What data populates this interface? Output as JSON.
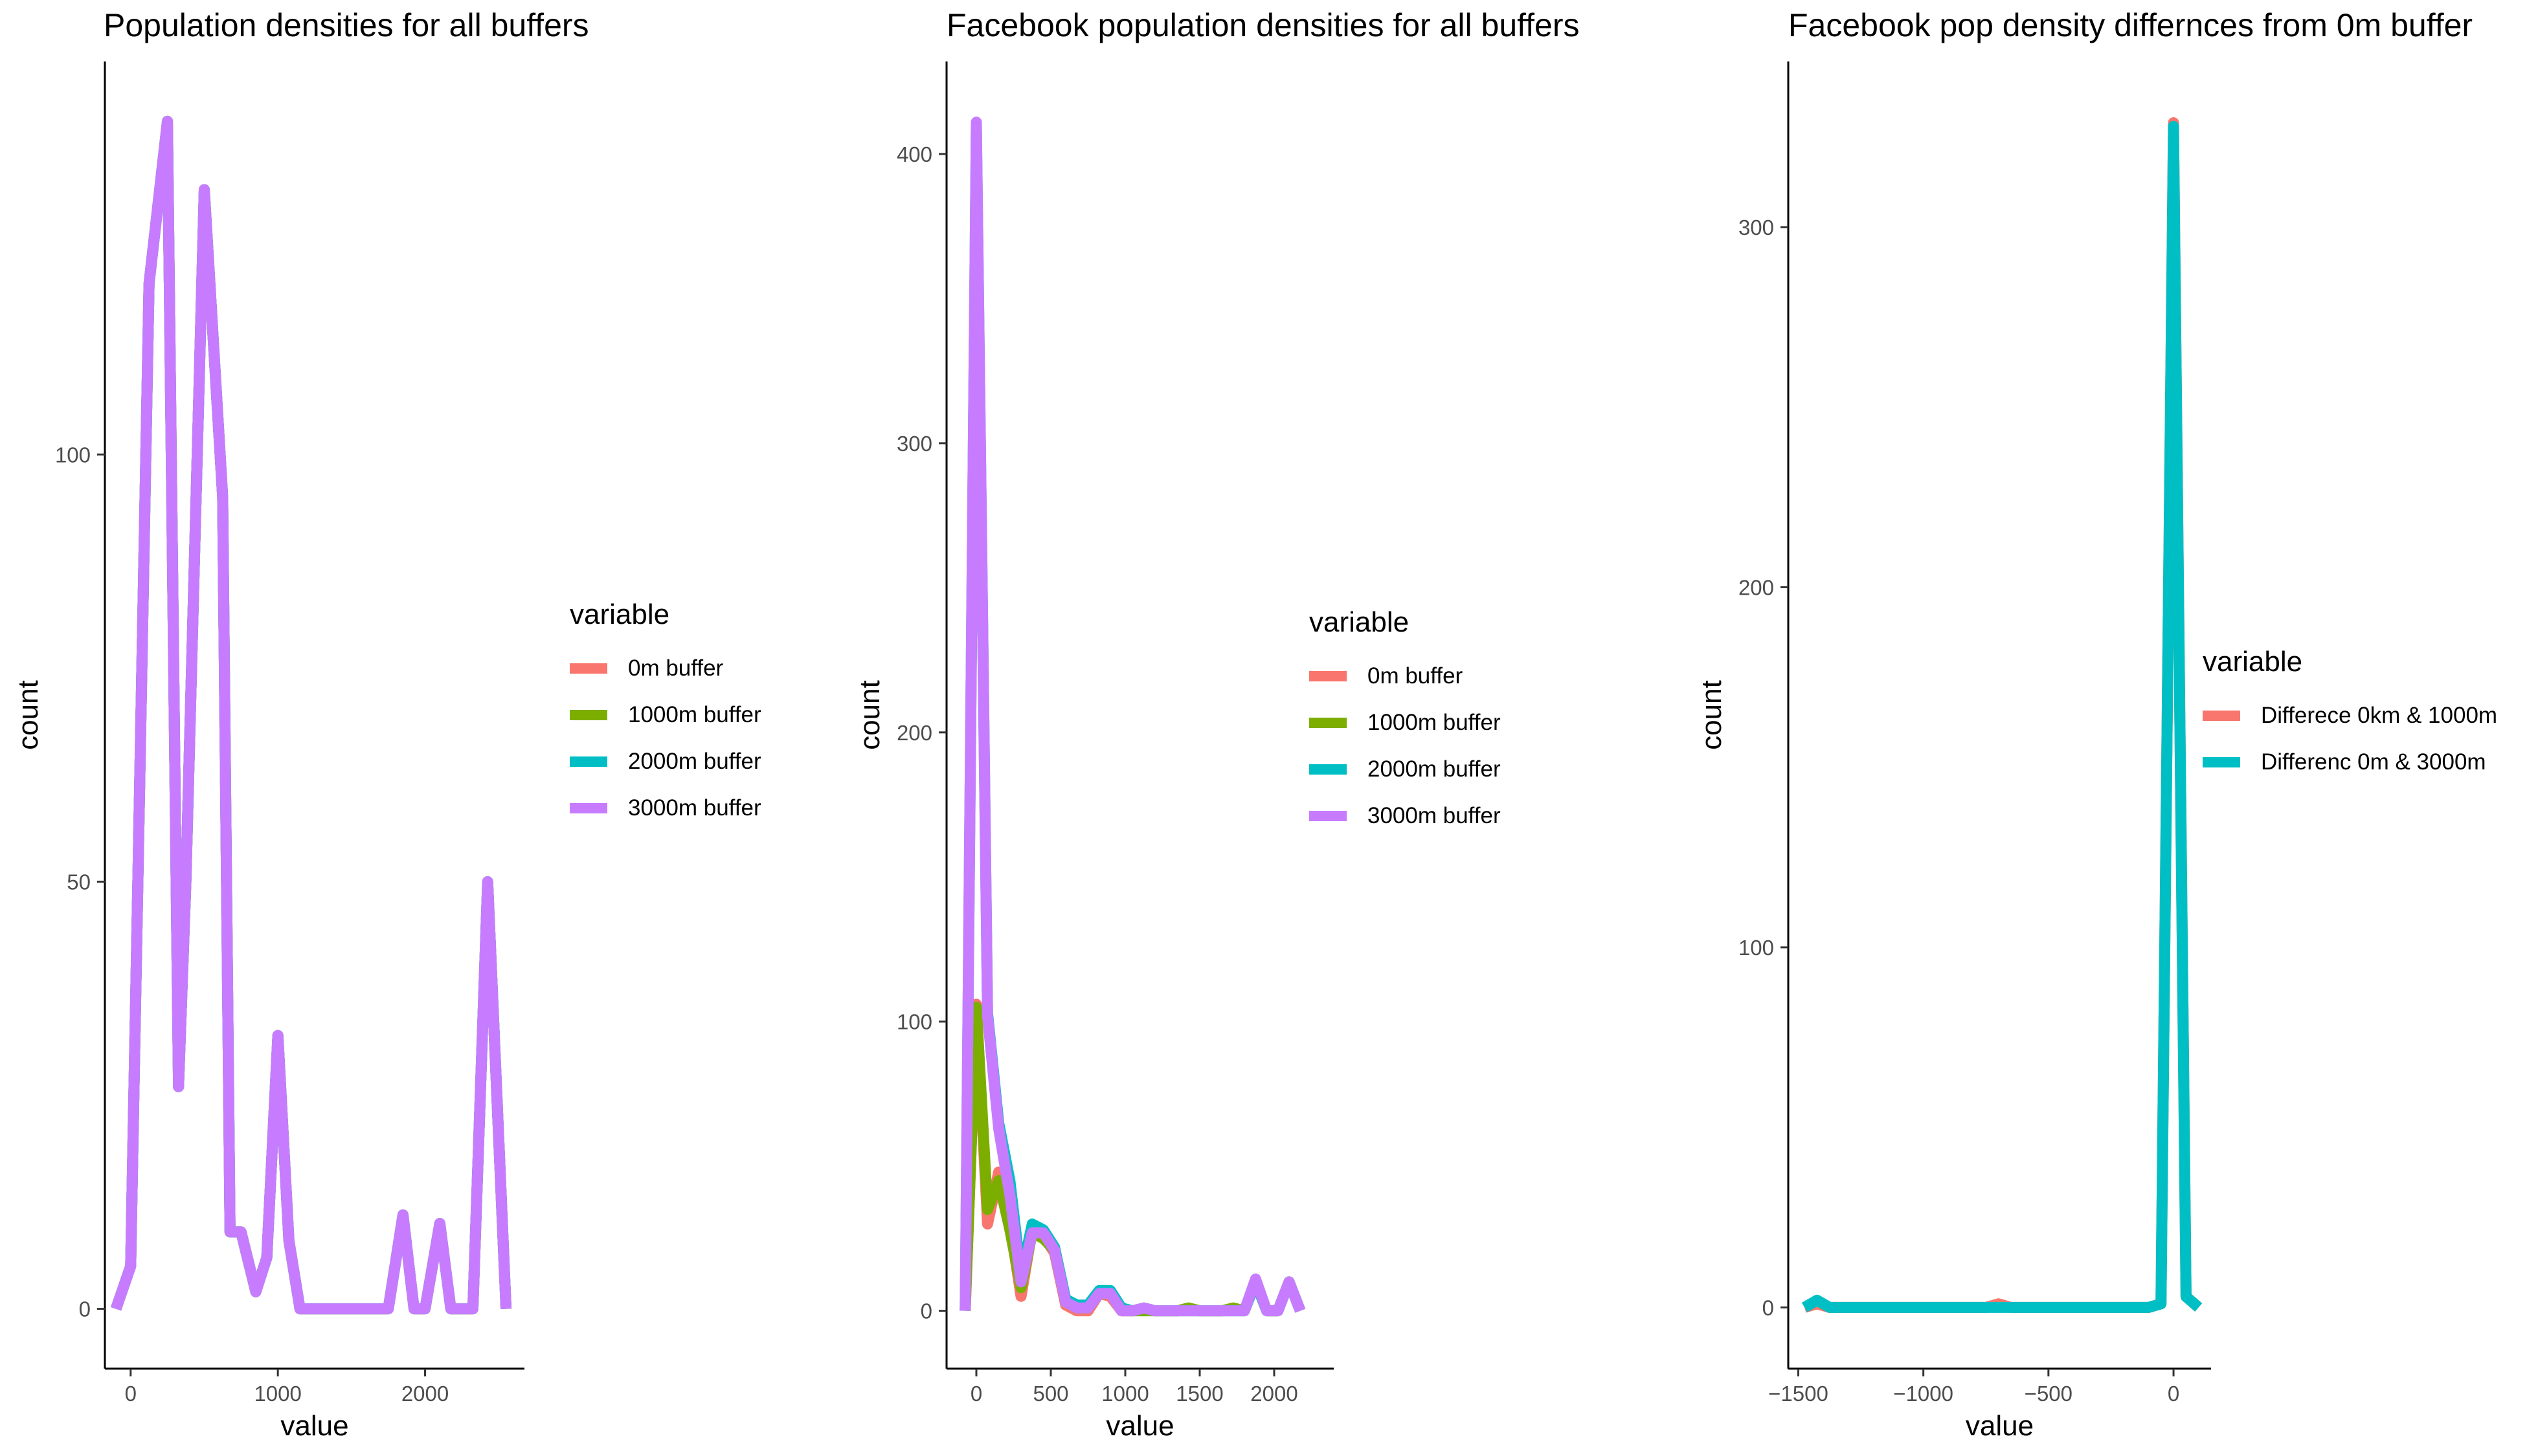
{
  "colors": {
    "0m buffer": "#F8766D",
    "1000m buffer": "#7CAE00",
    "2000m buffer": "#00BFC4",
    "3000m buffer": "#C77CFF",
    "diff_1000": "#F8766D",
    "diff_3000": "#00BFC4"
  },
  "chart_data": [
    {
      "type": "line",
      "title": "Population densities for all buffers",
      "xlabel": "value",
      "ylabel": "count",
      "xlim": [
        -175,
        2675
      ],
      "ylim": [
        -7,
        146
      ],
      "xticks": [
        0,
        1000,
        2000
      ],
      "xtick_labels": [
        "0",
        "1000",
        "2000"
      ],
      "yticks": [
        0,
        50,
        100
      ],
      "ytick_labels": [
        "0",
        "50",
        "100"
      ],
      "legend_title": "variable",
      "legend": [
        "0m buffer",
        "1000m buffer",
        "2000m buffer",
        "3000m buffer"
      ],
      "series": [
        {
          "name": "0m buffer",
          "x": [
            -100,
            0,
            125,
            250,
            325,
            375,
            500,
            625,
            675,
            750,
            850,
            925,
            1000,
            1075,
            1150,
            1250,
            1500,
            1750,
            1850,
            1925,
            2000,
            2100,
            2175,
            2325,
            2425,
            2550
          ],
          "y": [
            0,
            5,
            120,
            139,
            26,
            50,
            131,
            95,
            9,
            9,
            2,
            6,
            32,
            8,
            0,
            0,
            0,
            0,
            11,
            0,
            0,
            10,
            0,
            0,
            50,
            0
          ]
        },
        {
          "name": "1000m buffer",
          "x": [
            -100,
            0,
            125,
            250,
            325,
            375,
            500,
            625,
            675,
            750,
            850,
            925,
            1000,
            1075,
            1150,
            1250,
            1500,
            1750,
            1850,
            1925,
            2000,
            2100,
            2175,
            2325,
            2425,
            2550
          ],
          "y": [
            0,
            5,
            120,
            139,
            26,
            50,
            131,
            95,
            9,
            9,
            2,
            6,
            32,
            8,
            0,
            0,
            0,
            0,
            11,
            0,
            0,
            10,
            0,
            0,
            50,
            0
          ]
        },
        {
          "name": "2000m buffer",
          "x": [
            -100,
            0,
            125,
            250,
            325,
            375,
            500,
            625,
            675,
            750,
            850,
            925,
            1000,
            1075,
            1150,
            1250,
            1500,
            1750,
            1850,
            1925,
            2000,
            2100,
            2175,
            2325,
            2425,
            2550
          ],
          "y": [
            0,
            5,
            120,
            139,
            26,
            50,
            131,
            95,
            9,
            9,
            2,
            6,
            32,
            8,
            0,
            0,
            0,
            0,
            11,
            0,
            0,
            10,
            0,
            0,
            50,
            0
          ]
        },
        {
          "name": "3000m buffer",
          "x": [
            -100,
            0,
            125,
            250,
            325,
            375,
            500,
            625,
            675,
            750,
            850,
            925,
            1000,
            1075,
            1150,
            1250,
            1500,
            1750,
            1850,
            1925,
            2000,
            2100,
            2175,
            2325,
            2425,
            2550
          ],
          "y": [
            0,
            5,
            120,
            139,
            26,
            50,
            131,
            95,
            9,
            9,
            2,
            6,
            32,
            8,
            0,
            0,
            0,
            0,
            11,
            0,
            0,
            10,
            0,
            0,
            50,
            0
          ]
        }
      ]
    },
    {
      "type": "line",
      "title": "Facebook population densities for all buffers",
      "xlabel": "value",
      "ylabel": "count",
      "xlim": [
        -200,
        2400
      ],
      "ylim": [
        -20,
        432
      ],
      "xticks": [
        0,
        500,
        1000,
        1500,
        2000
      ],
      "xtick_labels": [
        "0",
        "500",
        "1000",
        "1500",
        "2000"
      ],
      "yticks": [
        0,
        100,
        200,
        300,
        400
      ],
      "ytick_labels": [
        "0",
        "100",
        "200",
        "300",
        "400"
      ],
      "legend_title": "variable",
      "legend": [
        "0m buffer",
        "1000m buffer",
        "2000m buffer",
        "3000m buffer"
      ],
      "series": [
        {
          "name": "0m buffer",
          "x": [
            -75,
            0,
            75,
            150,
            225,
            300,
            375,
            450,
            525,
            600,
            675,
            750,
            825,
            900,
            975,
            1050,
            1125,
            1200,
            1275,
            1350,
            1425,
            1500,
            1575,
            1650,
            1725,
            1800,
            1875,
            1950,
            2025,
            2100,
            2175
          ],
          "y": [
            0,
            106,
            30,
            48,
            30,
            5,
            28,
            26,
            20,
            2,
            0,
            0,
            6,
            5,
            0,
            0,
            1,
            0,
            0,
            0,
            1,
            0,
            0,
            0,
            1,
            0,
            10,
            0,
            0,
            10,
            0
          ]
        },
        {
          "name": "1000m buffer",
          "x": [
            -75,
            0,
            75,
            150,
            225,
            300,
            375,
            450,
            525,
            600,
            675,
            750,
            825,
            900,
            975,
            1050,
            1125,
            1200,
            1275,
            1350,
            1425,
            1500,
            1575,
            1650,
            1725,
            1800,
            1875,
            1950,
            2025,
            2100,
            2175
          ],
          "y": [
            0,
            105,
            35,
            45,
            28,
            8,
            27,
            25,
            21,
            3,
            1,
            1,
            6,
            6,
            0,
            0,
            0,
            0,
            0,
            0,
            1,
            0,
            0,
            0,
            1,
            0,
            10,
            0,
            0,
            10,
            0
          ]
        },
        {
          "name": "2000m buffer",
          "x": [
            -75,
            0,
            75,
            150,
            225,
            300,
            375,
            450,
            525,
            600,
            675,
            750,
            825,
            900,
            975,
            1050,
            1125,
            1200,
            1275,
            1350,
            1425,
            1500,
            1575,
            1650,
            1725,
            1800,
            1875,
            1950,
            2025,
            2100,
            2175
          ],
          "y": [
            0,
            410,
            103,
            65,
            45,
            12,
            30,
            28,
            22,
            4,
            2,
            2,
            7,
            7,
            1,
            0,
            1,
            0,
            0,
            0,
            0,
            0,
            0,
            0,
            0,
            0,
            10,
            0,
            0,
            10,
            0
          ]
        },
        {
          "name": "3000m buffer",
          "x": [
            -75,
            0,
            75,
            150,
            225,
            300,
            375,
            450,
            525,
            600,
            675,
            750,
            825,
            900,
            975,
            1050,
            1125,
            1200,
            1275,
            1350,
            1425,
            1500,
            1575,
            1650,
            1725,
            1800,
            1875,
            1950,
            2025,
            2100,
            2175
          ],
          "y": [
            0,
            411,
            102,
            63,
            40,
            10,
            27,
            27,
            21,
            3,
            1,
            1,
            6,
            6,
            0,
            0,
            1,
            0,
            0,
            0,
            0,
            0,
            0,
            0,
            0,
            0,
            11,
            0,
            0,
            10,
            0
          ]
        }
      ]
    },
    {
      "type": "line",
      "title": "Facebook pop density differnces from 0m buffer",
      "xlabel": "value",
      "ylabel": "count",
      "xlim": [
        -1540,
        150
      ],
      "ylim": [
        -17,
        346
      ],
      "xticks": [
        -1500,
        -1000,
        -500,
        0
      ],
      "xtick_labels": [
        "−1500",
        "−1000",
        "−500",
        "0"
      ],
      "yticks": [
        0,
        100,
        200,
        300
      ],
      "ytick_labels": [
        "0",
        "100",
        "200",
        "300"
      ],
      "legend_title": "variable",
      "legend": [
        "Differece 0km & 1000m",
        "Differenc 0m & 3000m"
      ],
      "series": [
        {
          "name": "Differece 0km & 1000m",
          "x": [
            -1475,
            -1425,
            -1375,
            -1300,
            -1200,
            -1100,
            -1000,
            -900,
            -800,
            -750,
            -700,
            -650,
            -600,
            -500,
            -400,
            -300,
            -200,
            -100,
            -50,
            0,
            50,
            100
          ],
          "y": [
            0,
            1,
            0,
            0,
            0,
            0,
            0,
            0,
            0,
            0,
            1,
            0,
            0,
            0,
            0,
            0,
            0,
            0,
            1,
            329,
            3,
            0
          ]
        },
        {
          "name": "Differenc 0m & 3000m",
          "x": [
            -1475,
            -1425,
            -1375,
            -1300,
            -1200,
            -1100,
            -1000,
            -900,
            -800,
            -750,
            -700,
            -650,
            -600,
            -500,
            -400,
            -300,
            -200,
            -100,
            -50,
            0,
            50,
            100
          ],
          "y": [
            0,
            2,
            0,
            0,
            0,
            0,
            0,
            0,
            0,
            0,
            0,
            0,
            0,
            0,
            0,
            0,
            0,
            0,
            1,
            328,
            3,
            0
          ]
        }
      ]
    }
  ]
}
